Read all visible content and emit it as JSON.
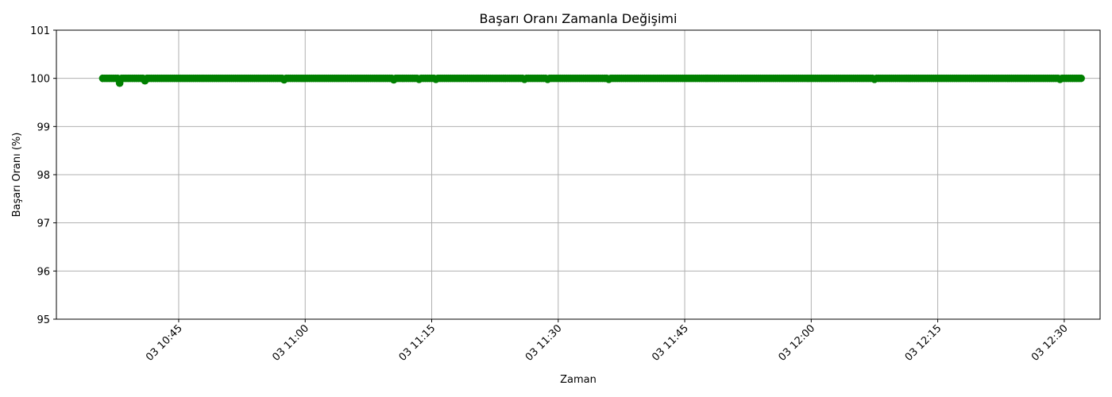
{
  "chart_data": {
    "type": "scatter",
    "title": "Başarı Oranı Zamanla Değişimi",
    "xlabel": "Zaman",
    "ylabel": "Başarı Oranı (%)",
    "ylim": [
      95,
      101
    ],
    "xlim": [
      "2024-01-03 10:30:30",
      "2024-01-03 12:34:15"
    ],
    "grid": true,
    "marker_color": "#008000",
    "y_ticks": [
      {
        "value": 95,
        "label": "95"
      },
      {
        "value": 96,
        "label": "96"
      },
      {
        "value": 97,
        "label": "97"
      },
      {
        "value": 98,
        "label": "98"
      },
      {
        "value": 99,
        "label": "99"
      },
      {
        "value": 100,
        "label": "100"
      },
      {
        "value": 101,
        "label": "101"
      }
    ],
    "x_ticks": [
      {
        "value": "2024-01-03 10:45",
        "label": "03 10:45"
      },
      {
        "value": "2024-01-03 11:00",
        "label": "03 11:00"
      },
      {
        "value": "2024-01-03 11:15",
        "label": "03 11:15"
      },
      {
        "value": "2024-01-03 11:30",
        "label": "03 11:30"
      },
      {
        "value": "2024-01-03 11:45",
        "label": "03 11:45"
      },
      {
        "value": "2024-01-03 12:00",
        "label": "03 12:00"
      },
      {
        "value": "2024-01-03 12:15",
        "label": "03 12:15"
      },
      {
        "value": "2024-01-03 12:30",
        "label": "03 12:30"
      }
    ],
    "series": [
      {
        "x": [
          "2024-01-03 10:36",
          "2024-01-03 12:32"
        ],
        "interval_seconds": 15,
        "y_default": 100,
        "dips": [
          {
            "x": "2024-01-03 10:38:00",
            "y": 99.9
          },
          {
            "x": "2024-01-03 10:41:00",
            "y": 99.95
          },
          {
            "x": "2024-01-03 10:57:30",
            "y": 99.97
          },
          {
            "x": "2024-01-03 11:10:30",
            "y": 99.97
          },
          {
            "x": "2024-01-03 11:13:30",
            "y": 99.98
          },
          {
            "x": "2024-01-03 11:15:30",
            "y": 99.98
          },
          {
            "x": "2024-01-03 11:26:00",
            "y": 99.98
          },
          {
            "x": "2024-01-03 11:28:45",
            "y": 99.98
          },
          {
            "x": "2024-01-03 11:36:00",
            "y": 99.98
          },
          {
            "x": "2024-01-03 12:07:30",
            "y": 99.98
          },
          {
            "x": "2024-01-03 12:29:30",
            "y": 99.98
          }
        ]
      }
    ]
  }
}
